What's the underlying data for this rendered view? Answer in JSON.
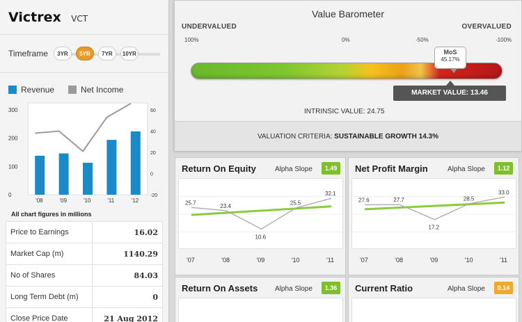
{
  "company": {
    "name": "Victrex",
    "ticker": "VCT"
  },
  "timeframe": {
    "label": "Timeframe",
    "options": [
      "3YR",
      "5YR",
      "7YR",
      "10YR"
    ],
    "selected": "5YR"
  },
  "legend": {
    "revenue": "Revenue",
    "net_income": "Net Income"
  },
  "colors": {
    "revenue": "#1a8ac8",
    "net_income": "#9b9b9b",
    "slope_green": "#7fbf2e",
    "slope_orange": "#f0a92a",
    "trend_green": "#8ccb3c"
  },
  "chart_footnote": "All chart figures in millions",
  "chart_data": [
    {
      "type": "bar",
      "name": "revenue_net_income",
      "categories": [
        "'08",
        "'09",
        "'10",
        "'11",
        "'12"
      ],
      "series": [
        {
          "name": "Revenue",
          "axis": "left",
          "values": [
            138,
            146,
            113,
            194,
            224
          ]
        },
        {
          "name": "Net Income",
          "axis": "right",
          "type": "line",
          "values": [
            38,
            40,
            21,
            53,
            66
          ]
        }
      ],
      "left_axis": {
        "ticks": [
          0,
          100,
          200,
          300
        ],
        "ylim": [
          0,
          300
        ]
      },
      "right_axis": {
        "ticks": [
          -20,
          0,
          20,
          40,
          60
        ],
        "ylim": [
          -20,
          60
        ]
      }
    },
    {
      "type": "line",
      "name": "return_on_equity",
      "title": "Return On Equity",
      "x": [
        "'07",
        "'08",
        "'09",
        "'10",
        "'11"
      ],
      "values": [
        25.7,
        23.4,
        10.6,
        25.5,
        32.1
      ],
      "trend_slope": 1.49
    },
    {
      "type": "line",
      "name": "net_profit_margin",
      "title": "Net Profit Margin",
      "x": [
        "'07",
        "'08",
        "'09",
        "'10",
        "'11"
      ],
      "values": [
        27.6,
        27.7,
        17.2,
        28.5,
        33.0
      ],
      "trend_slope": 1.12
    }
  ],
  "ratios": [
    {
      "label": "Price to Earnings",
      "value": "16.02"
    },
    {
      "label": "Market Cap (m)",
      "value": "1140.29"
    },
    {
      "label": "No of Shares",
      "value": "84.03"
    },
    {
      "label": "Long Term Debt (m)",
      "value": "0"
    },
    {
      "label": "Close Price Date",
      "value": "21 Aug 2012"
    }
  ],
  "barometer": {
    "title": "Value Barometer",
    "undervalued": "UNDERVALUED",
    "overvalued": "OVERVALUED",
    "scale": [
      "100%",
      "0%",
      "-50%",
      "-100%"
    ],
    "mos_label": "MoS",
    "mos_value": "45.17%",
    "mos_fraction": 0.28,
    "market_value_label": "MARKET VALUE:",
    "market_value": "13.46",
    "intrinsic_label": "INTRINSIC VALUE:",
    "intrinsic_value": "24.75",
    "criteria_label": "VALUATION CRITERIA:",
    "criteria_value": "SUSTAINABLE GROWTH 14.3%"
  },
  "panels": [
    {
      "title": "Return On Equity",
      "slope_label": "Alpha Slope",
      "slope": "1.49",
      "slope_color": "green"
    },
    {
      "title": "Net Profit Margin",
      "slope_label": "Alpha Slope",
      "slope": "1.12",
      "slope_color": "green"
    },
    {
      "title": "Return On Assets",
      "slope_label": "Alpha Slope",
      "slope": "1.36",
      "slope_color": "green"
    },
    {
      "title": "Current Ratio",
      "slope_label": "Alpha Slope",
      "slope": "0.14",
      "slope_color": "orange"
    }
  ],
  "panel_x_labels": [
    "'07",
    "'08",
    "'09",
    "'10",
    "'11"
  ]
}
